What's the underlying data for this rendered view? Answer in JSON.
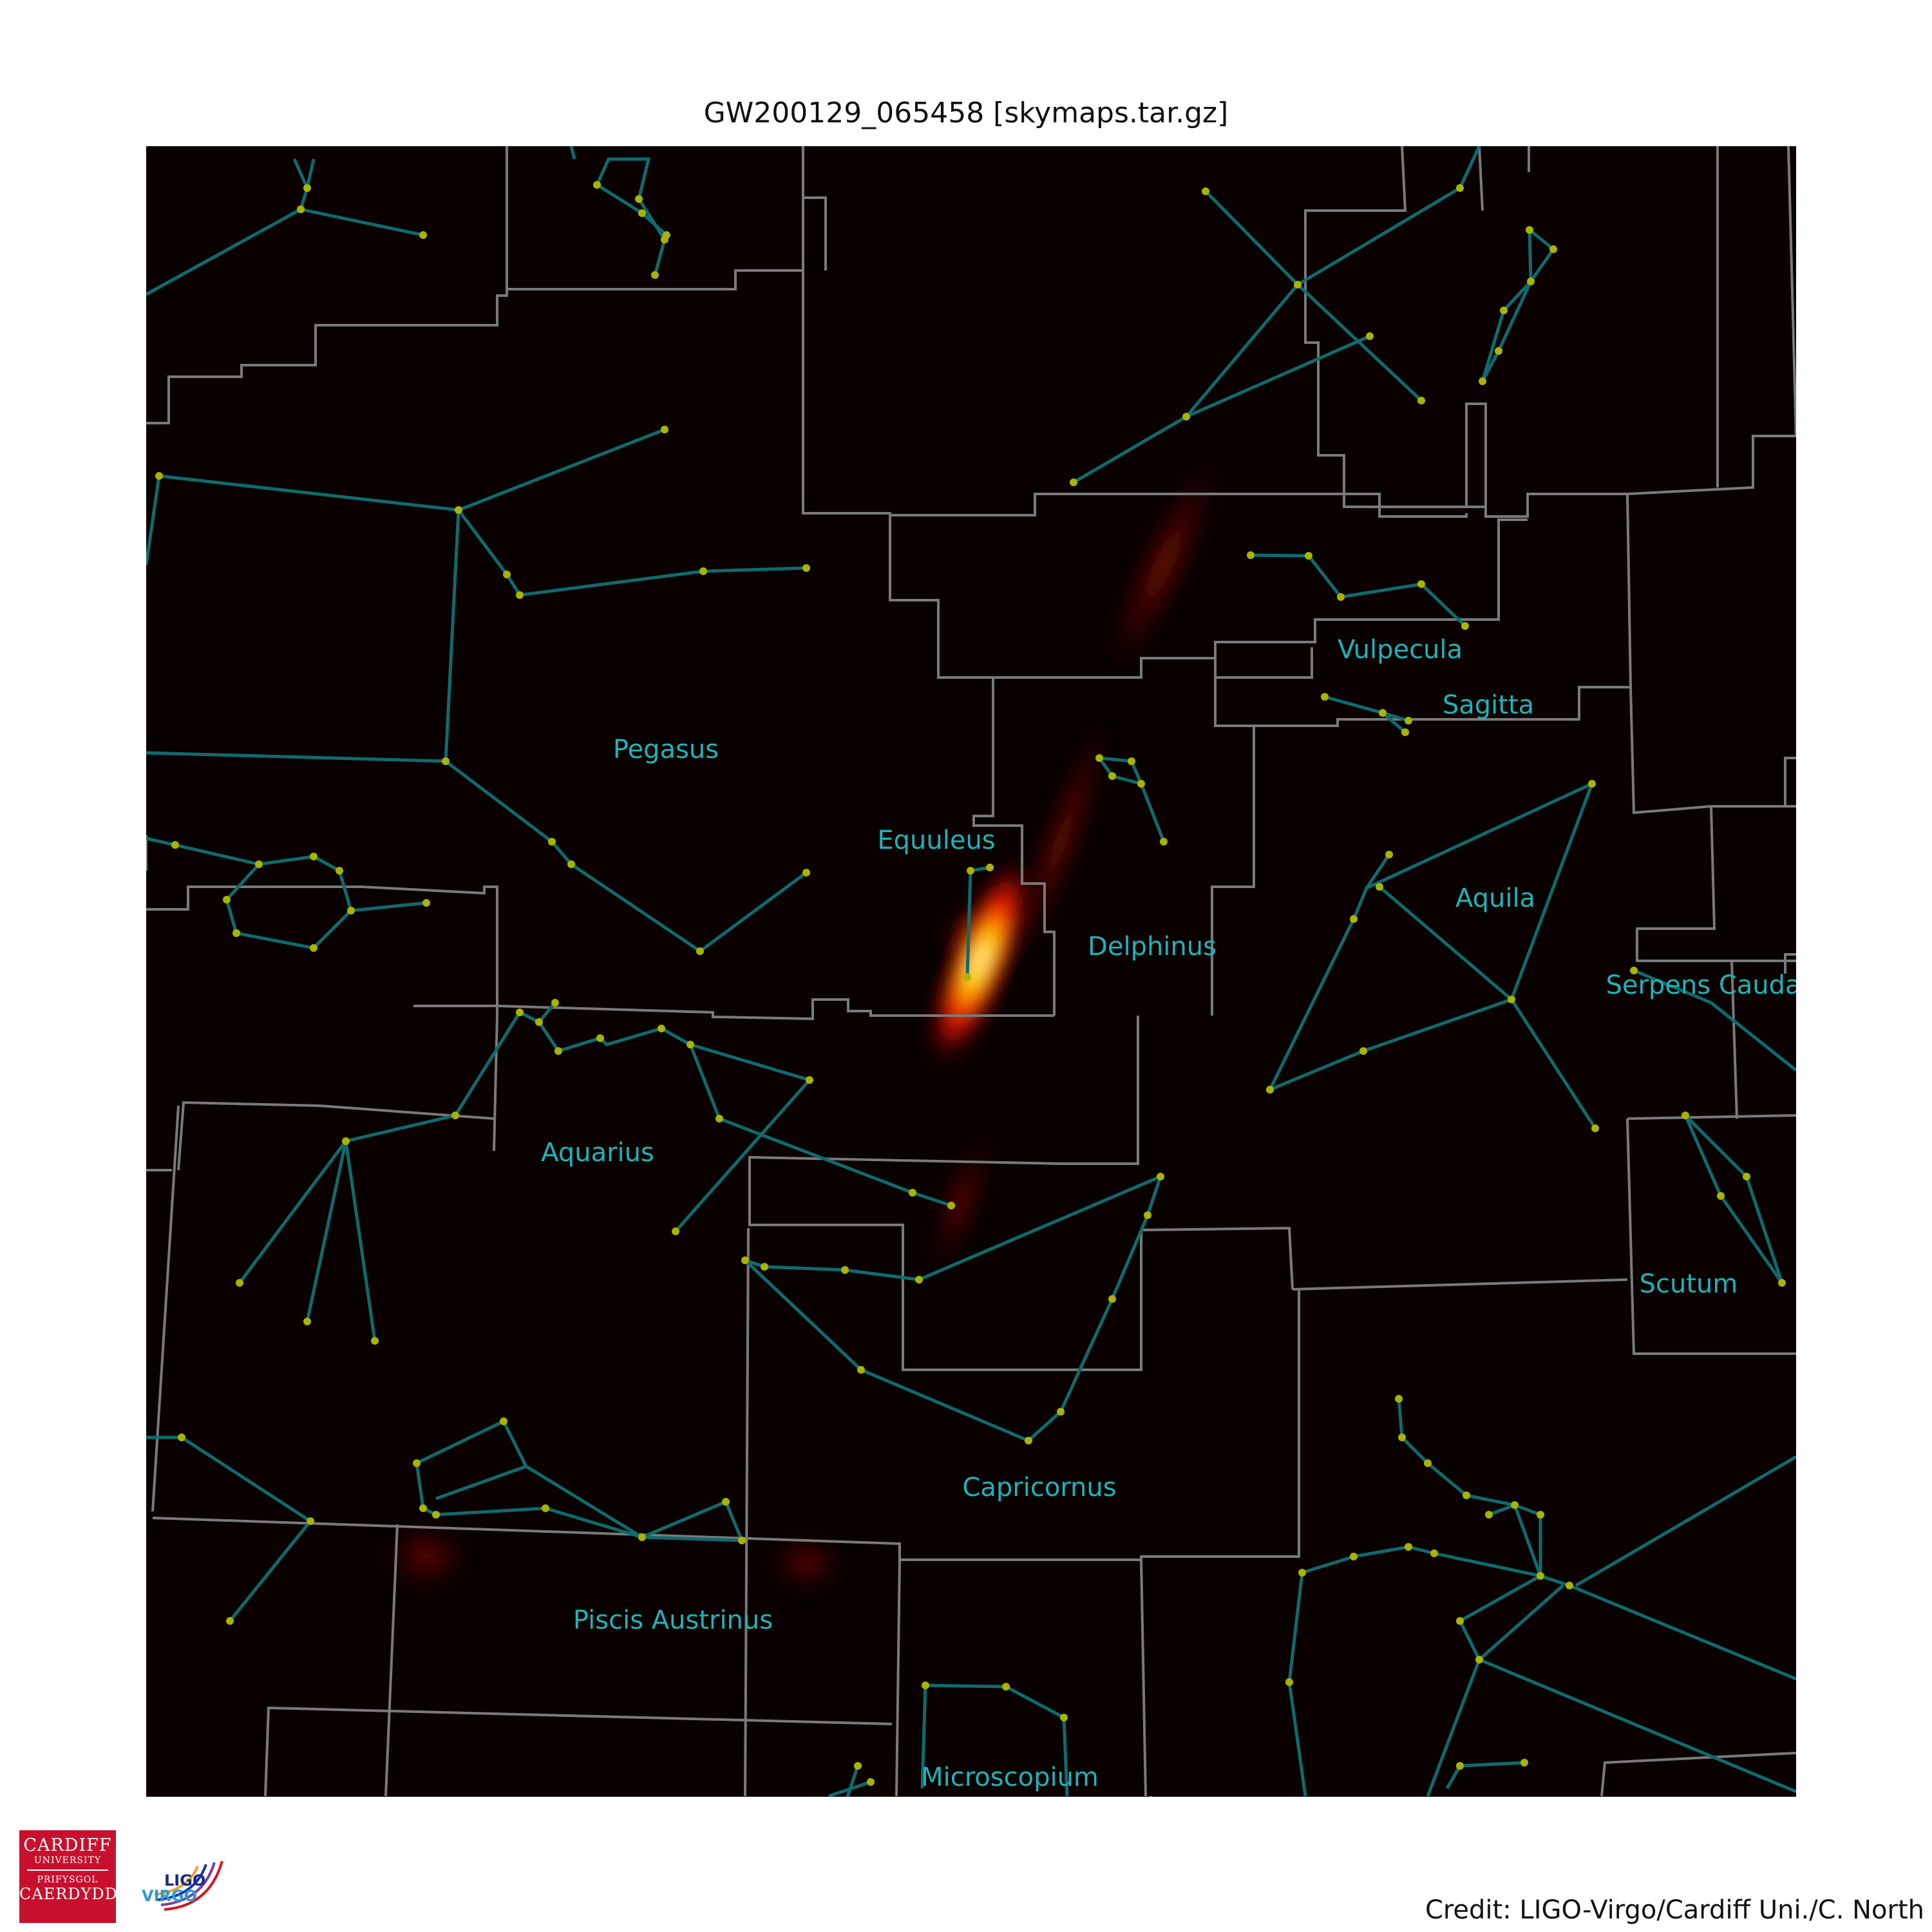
{
  "title": "GW200129_065458 [skymaps.tar.gz]",
  "credit": "Credit: LIGO-Virgo/Cardiff Uni./C. North",
  "logos": {
    "cardiff": {
      "line1": "CARDIFF",
      "line2": "UNIVERSITY",
      "line3": "PRIFYSGOL",
      "line4": "CAERDYDD"
    },
    "ligo_virgo": {
      "ligo": "LIGO",
      "virgo": "VIRGO"
    }
  },
  "constellations": [
    "Pegasus",
    "Equuleus",
    "Delphinus",
    "Vulpecula",
    "Sagitta",
    "Aquila",
    "Serpens Cauda",
    "Aquarius",
    "Scutum",
    "Capricornus",
    "Piscis Austrinus",
    "Microscopium"
  ],
  "colors": {
    "background": "#0a0000",
    "constellation_lines": "#0e6b6e",
    "stars": "#a8b400",
    "boundaries": "#7a7a7a",
    "labels": "#1fb3b9",
    "probability_peak": "#fff8a0",
    "probability_mid": "#ff2a00",
    "probability_low": "#7a0800"
  }
}
